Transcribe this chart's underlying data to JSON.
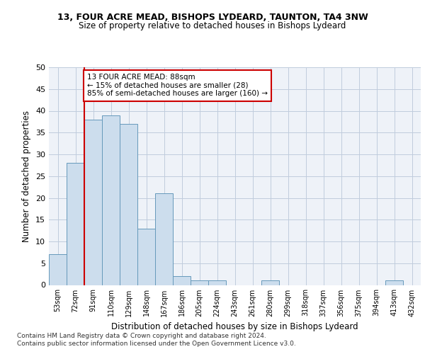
{
  "title1": "13, FOUR ACRE MEAD, BISHOPS LYDEARD, TAUNTON, TA4 3NW",
  "title2": "Size of property relative to detached houses in Bishops Lydeard",
  "xlabel": "Distribution of detached houses by size in Bishops Lydeard",
  "ylabel": "Number of detached properties",
  "bar_color": "#ccdded",
  "bar_edge_color": "#6699bb",
  "categories": [
    "53sqm",
    "72sqm",
    "91sqm",
    "110sqm",
    "129sqm",
    "148sqm",
    "167sqm",
    "186sqm",
    "205sqm",
    "224sqm",
    "243sqm",
    "261sqm",
    "280sqm",
    "299sqm",
    "318sqm",
    "337sqm",
    "356sqm",
    "375sqm",
    "394sqm",
    "413sqm",
    "432sqm"
  ],
  "values": [
    7,
    28,
    38,
    39,
    37,
    13,
    21,
    2,
    1,
    1,
    0,
    0,
    1,
    0,
    0,
    0,
    0,
    0,
    0,
    1,
    0
  ],
  "ylim": [
    0,
    50
  ],
  "yticks": [
    0,
    5,
    10,
    15,
    20,
    25,
    30,
    35,
    40,
    45,
    50
  ],
  "property_line_x": 1.5,
  "annotation_text": "13 FOUR ACRE MEAD: 88sqm\n← 15% of detached houses are smaller (28)\n85% of semi-detached houses are larger (160) →",
  "annotation_box_color": "#ffffff",
  "annotation_border_color": "#cc0000",
  "red_line_color": "#cc0000",
  "footer1": "Contains HM Land Registry data © Crown copyright and database right 2024.",
  "footer2": "Contains public sector information licensed under the Open Government Licence v3.0.",
  "bg_color": "#eef2f8",
  "grid_color": "#c0ccdd"
}
